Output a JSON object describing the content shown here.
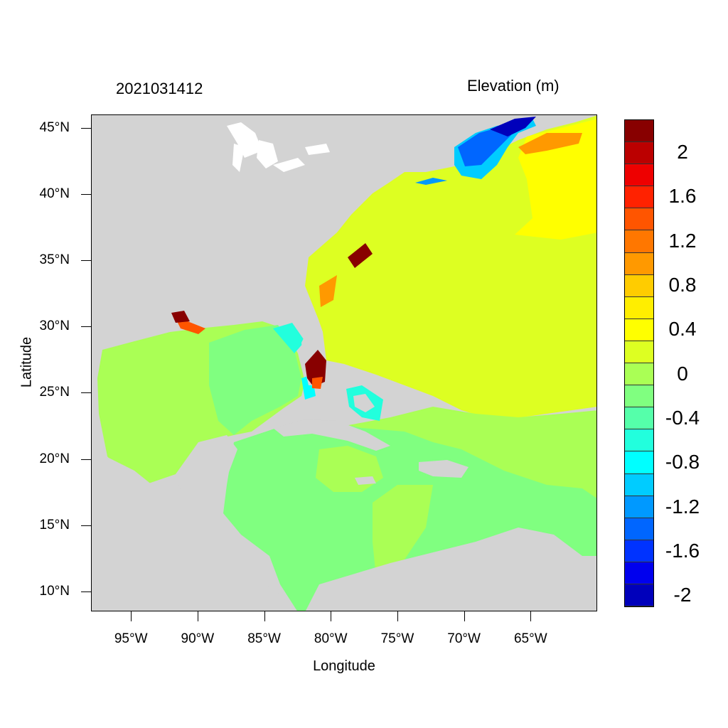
{
  "header": {
    "datetime": "2021031412",
    "variable": "Elevation (m)"
  },
  "axes": {
    "xlabel": "Longitude",
    "ylabel": "Latitude",
    "lon_range": [
      -98,
      -60
    ],
    "lat_range": [
      8.5,
      46
    ],
    "x_ticks": [
      {
        "value": -95,
        "label": "95°W"
      },
      {
        "value": -90,
        "label": "90°W"
      },
      {
        "value": -85,
        "label": "85°W"
      },
      {
        "value": -80,
        "label": "80°W"
      },
      {
        "value": -75,
        "label": "75°W"
      },
      {
        "value": -70,
        "label": "70°W"
      },
      {
        "value": -65,
        "label": "65°W"
      }
    ],
    "y_ticks": [
      {
        "value": 45,
        "label": "45°N"
      },
      {
        "value": 40,
        "label": "40°N"
      },
      {
        "value": 35,
        "label": "35°N"
      },
      {
        "value": 30,
        "label": "30°N"
      },
      {
        "value": 25,
        "label": "25°N"
      },
      {
        "value": 20,
        "label": "20°N"
      },
      {
        "value": 15,
        "label": "15°N"
      },
      {
        "value": 10,
        "label": "10°N"
      }
    ]
  },
  "colorbar": {
    "labels": [
      "2",
      "1.6",
      "1.2",
      "0.8",
      "0.4",
      "0",
      "-0.4",
      "-0.8",
      "-1.2",
      "-1.6",
      "-2"
    ],
    "colors": [
      "#880000",
      "#bb0000",
      "#ee0000",
      "#ff2200",
      "#ff5500",
      "#ff7700",
      "#ff9900",
      "#ffcc00",
      "#ffee00",
      "#ffff00",
      "#ddff22",
      "#aaff55",
      "#80ff80",
      "#55ffaa",
      "#22ffdd",
      "#00ffff",
      "#00ccff",
      "#0099ff",
      "#0066ff",
      "#0033ff",
      "#0000ee",
      "#0000bb"
    ]
  },
  "colors": {
    "land": "#d3d3d3",
    "lakes": "#ffffff"
  }
}
